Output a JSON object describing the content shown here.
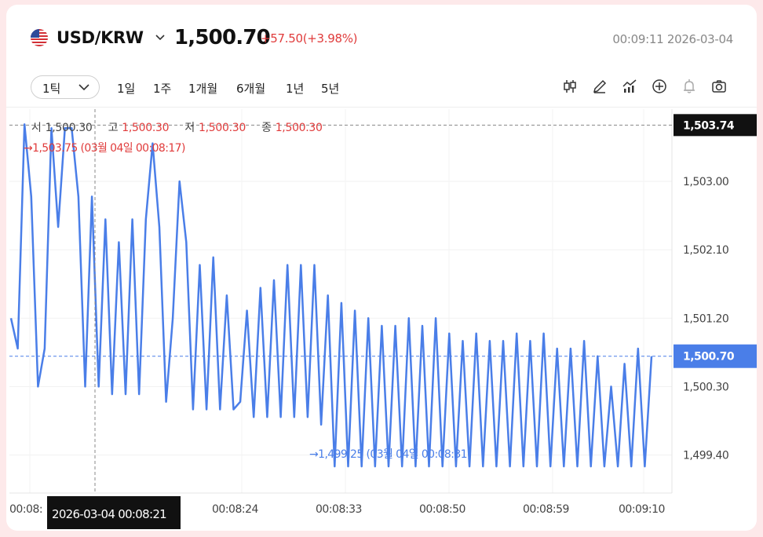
{
  "header": {
    "pair": "USD/KRW",
    "price": "1,500.70",
    "change": "+57.50(+3.98%)",
    "datetime": "00:09:11 2026-03-04",
    "colors": {
      "up": "#e03b3b",
      "line": "#4a7ee8"
    }
  },
  "toolbar": {
    "interval": "1틱",
    "ranges": [
      "1일",
      "1주",
      "1개월",
      "6개월",
      "1년",
      "5년"
    ],
    "tools": [
      "candle-icon",
      "pen-icon",
      "indicator-icon",
      "crosshair-icon",
      "alert-icon",
      "camera-icon"
    ]
  },
  "ohlc": {
    "open_label": "시",
    "open": "1,500.30",
    "high_label": "고",
    "high": "1,500.30",
    "low_label": "저",
    "low": "1,500.30",
    "close_label": "종",
    "close": "1,500.30"
  },
  "chart_data": {
    "type": "line",
    "yticks": [
      "1,503.00",
      "1,502.10",
      "1,501.20",
      "1,500.30",
      "1,499.40"
    ],
    "ytick_values": [
      1503.0,
      1502.1,
      1501.2,
      1500.3,
      1499.4
    ],
    "ylim": [
      1498.9,
      1503.95
    ],
    "xticks": [
      "00:08:",
      "00:08:24",
      "00:08:33",
      "00:08:50",
      "00:08:59",
      "00:09:10"
    ],
    "max_marker": {
      "value": 1503.75,
      "label": "→1,503.75 (03월 04일 00:08:17)"
    },
    "min_marker": {
      "value": 1499.25,
      "label": "→1,499.25 (03월 04일 00:08:31)"
    },
    "crosshair_price": "1,503.74",
    "crosshair_price_value": 1503.74,
    "crosshair_time": "2026-03-04 00:08:21",
    "last_price": "1,500.70",
    "last_price_value": 1500.7,
    "values": [
      1501.2,
      1500.8,
      1503.75,
      1502.8,
      1500.3,
      1500.8,
      1503.7,
      1502.4,
      1503.7,
      1503.7,
      1502.8,
      1500.3,
      1502.8,
      1500.3,
      1502.5,
      1500.2,
      1502.2,
      1500.2,
      1502.5,
      1500.2,
      1502.5,
      1503.5,
      1502.4,
      1500.1,
      1501.2,
      1503.0,
      1502.2,
      1500.0,
      1501.9,
      1500.0,
      1502.0,
      1500.0,
      1501.5,
      1500.0,
      1500.1,
      1501.3,
      1499.9,
      1501.6,
      1499.9,
      1501.7,
      1499.9,
      1501.9,
      1499.9,
      1501.9,
      1499.9,
      1501.9,
      1499.8,
      1501.5,
      1499.25,
      1501.4,
      1499.25,
      1501.3,
      1499.25,
      1501.2,
      1499.25,
      1501.1,
      1499.25,
      1501.1,
      1499.25,
      1501.2,
      1499.25,
      1501.1,
      1499.25,
      1501.2,
      1499.25,
      1501.0,
      1499.25,
      1500.9,
      1499.25,
      1501.0,
      1499.25,
      1500.9,
      1499.25,
      1500.9,
      1499.25,
      1501.0,
      1499.25,
      1500.9,
      1499.25,
      1501.0,
      1499.25,
      1500.8,
      1499.25,
      1500.8,
      1499.25,
      1500.9,
      1499.25,
      1500.7,
      1499.25,
      1500.3,
      1499.25,
      1500.6,
      1499.25,
      1500.8,
      1499.25,
      1500.7
    ]
  }
}
